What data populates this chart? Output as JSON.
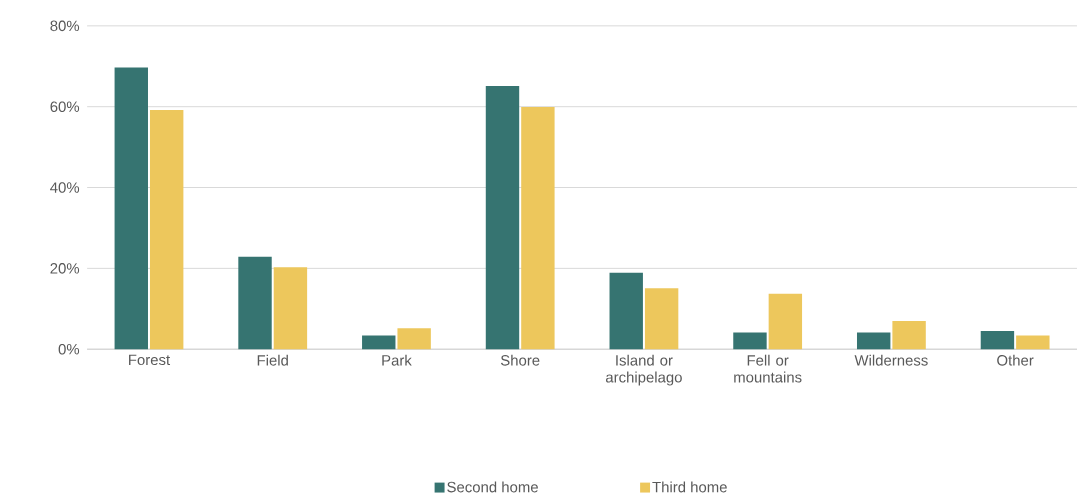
{
  "chart_data": {
    "type": "bar",
    "categories": [
      "Forest",
      "Field",
      "Park",
      "Shore",
      "Island or archipelago",
      "Fell or mountains",
      "Wilderness",
      "Other"
    ],
    "series": [
      {
        "name": "Second home",
        "color": "#367471",
        "values": [
          69.7,
          22.9,
          3.4,
          65.1,
          18.9,
          4.1,
          4.1,
          4.5
        ]
      },
      {
        "name": "Third home",
        "color": "#edc75c",
        "values": [
          59.2,
          20.3,
          5.2,
          59.9,
          15.1,
          13.7,
          7.0,
          3.4
        ]
      }
    ],
    "ylim": [
      0,
      80
    ],
    "yticks": [
      {
        "value": 0,
        "label": "0%"
      },
      {
        "value": 20,
        "label": "20%"
      },
      {
        "value": 40,
        "label": "40%"
      },
      {
        "value": 60,
        "label": "60%"
      },
      {
        "value": 80,
        "label": "80%"
      }
    ],
    "grid": "y",
    "legend": "bottom"
  }
}
